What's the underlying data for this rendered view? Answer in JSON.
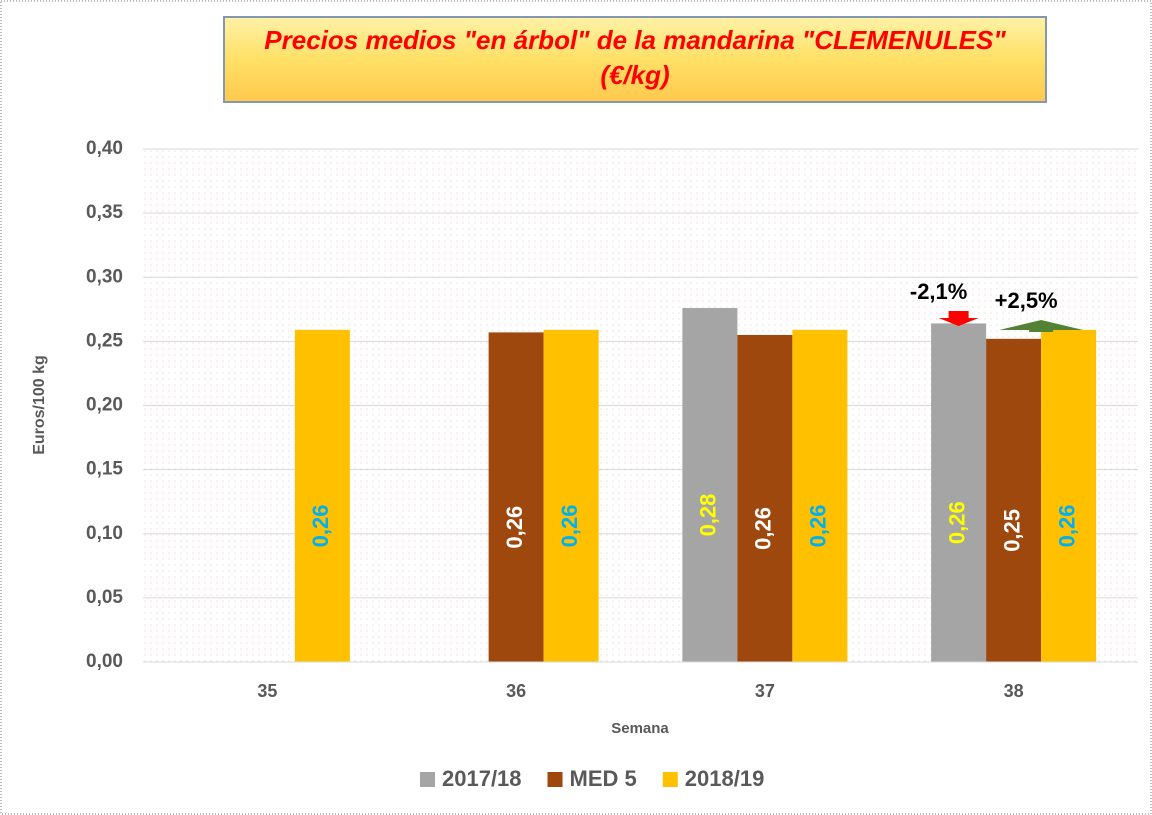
{
  "chart_data": {
    "type": "bar",
    "title": "Precios medios \"en árbol\" de la mandarina \"CLEMENULES\"",
    "subtitle": "(€/kg)",
    "y_label": "Euros/100 kg",
    "x_label": "Semana",
    "categories": [
      "35",
      "36",
      "37",
      "38"
    ],
    "series": [
      {
        "name": "2017/18",
        "color": "#a5a5a5",
        "label_color": "#ffff00",
        "values": [
          null,
          null,
          0.276,
          0.264
        ],
        "value_labels": [
          null,
          null,
          "0,28",
          "0,26"
        ]
      },
      {
        "name": "MED 5",
        "color": "#9e480e",
        "label_color": "#ffffff",
        "values": [
          null,
          0.257,
          0.255,
          0.252
        ],
        "value_labels": [
          null,
          "0,26",
          "0,26",
          "0,25"
        ]
      },
      {
        "name": "2018/19",
        "color": "#ffc000",
        "label_color": "#00b0f0",
        "values": [
          0.259,
          0.259,
          0.259,
          0.259
        ],
        "value_labels": [
          "0,26",
          "0,26",
          "0,26",
          "0,26"
        ]
      }
    ],
    "ylim": [
      0,
      0.4
    ],
    "yticks": [
      {
        "value": 0,
        "label": "0,00"
      },
      {
        "value": 0.05,
        "label": "0,05"
      },
      {
        "value": 0.1,
        "label": "0,10"
      },
      {
        "value": 0.15,
        "label": "0,15"
      },
      {
        "value": 0.2,
        "label": "0,20"
      },
      {
        "value": 0.25,
        "label": "0,25"
      },
      {
        "value": 0.3,
        "label": "0,30"
      },
      {
        "value": 0.35,
        "label": "0,35"
      },
      {
        "value": 0.4,
        "label": "0,40"
      }
    ],
    "grid": true,
    "legend": "bottom",
    "annotations": [
      {
        "text": "-2,1%",
        "color": "#ff0000"
      },
      {
        "text": "+2,5%",
        "color": "#548235"
      }
    ]
  }
}
